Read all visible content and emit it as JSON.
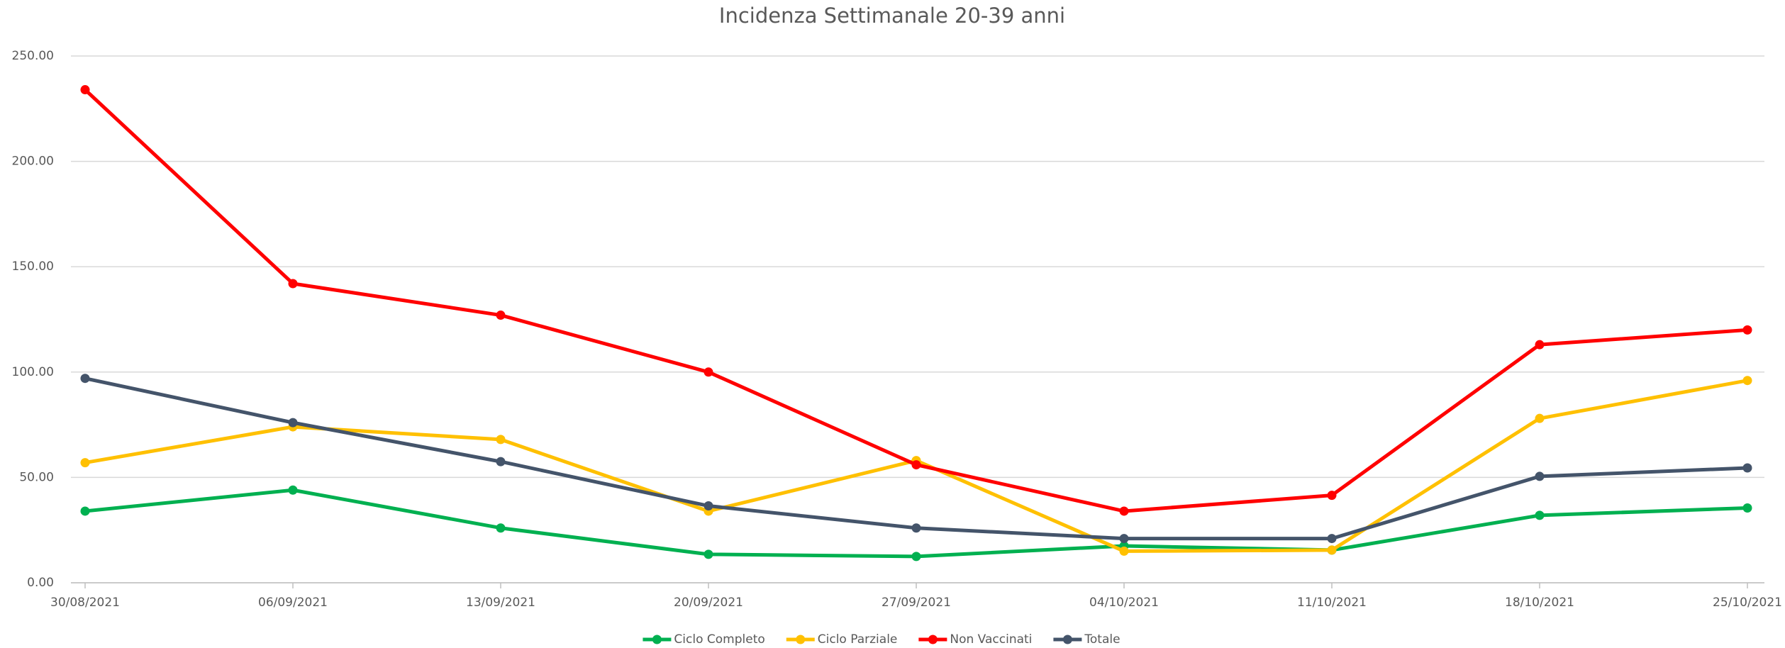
{
  "chart_data": {
    "type": "line",
    "title": "Incidenza Settimanale 20-39 anni",
    "categories": [
      "30/08/2021",
      "06/09/2021",
      "13/09/2021",
      "20/09/2021",
      "27/09/2021",
      "04/10/2021",
      "11/10/2021",
      "18/10/2021",
      "25/10/2021"
    ],
    "series": [
      {
        "name": "Ciclo Completo",
        "color": "#00b050",
        "values": [
          34,
          44,
          26,
          13.5,
          12.5,
          17.5,
          15.5,
          32,
          35.5
        ]
      },
      {
        "name": "Ciclo Parziale",
        "color": "#ffc000",
        "values": [
          57,
          74,
          68,
          34,
          58,
          15,
          15.5,
          78,
          96
        ]
      },
      {
        "name": "Non Vaccinati",
        "color": "#ff0000",
        "values": [
          234,
          142,
          127,
          100,
          56,
          34,
          41.5,
          113,
          120
        ]
      },
      {
        "name": "Totale",
        "color": "#44546a",
        "values": [
          97,
          76,
          57.5,
          36.5,
          26,
          21,
          21,
          50.5,
          54.5
        ]
      }
    ],
    "ylim": [
      0,
      250
    ],
    "yticks": [
      {
        "value": 0,
        "label": "0.00"
      },
      {
        "value": 50,
        "label": "50.00"
      },
      {
        "value": 100,
        "label": "100.00"
      },
      {
        "value": 150,
        "label": "150.00"
      },
      {
        "value": 200,
        "label": "200.00"
      },
      {
        "value": 250,
        "label": "250.00"
      }
    ],
    "grid": true,
    "legend": "bottom"
  }
}
